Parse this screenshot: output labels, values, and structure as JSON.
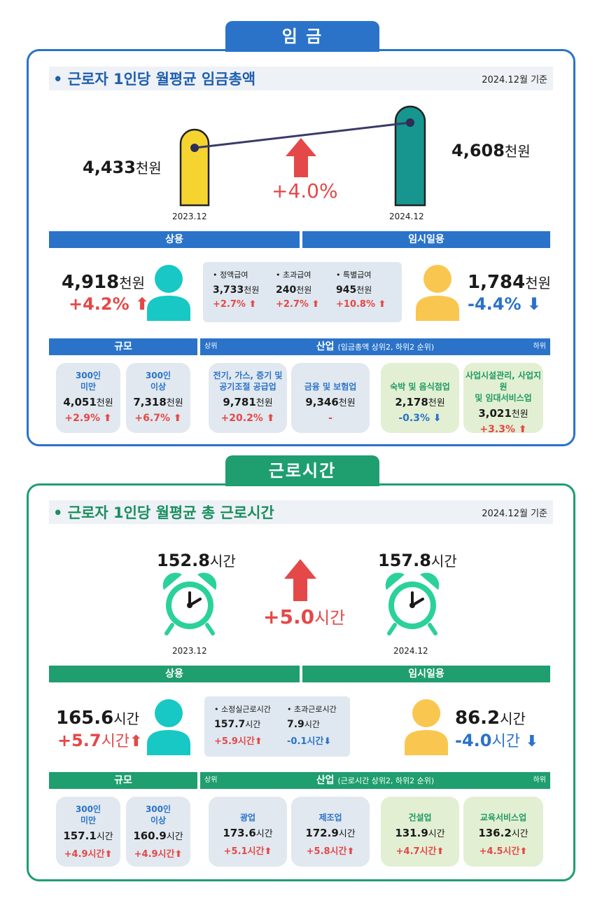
{
  "colors": {
    "wage_accent": "#2a73c9",
    "hours_accent": "#1f9e6f",
    "up": "#e54848",
    "down": "#2a73c9"
  },
  "wage": {
    "tab": "임 금",
    "title": "• 근로자 1인당 월평균 임금총액",
    "date": "2024.12월 기준",
    "left_value": "4,433",
    "left_unit": "천원",
    "left_period": "2023.12",
    "right_value": "4,608",
    "right_unit": "천원",
    "right_period": "2024.12",
    "change": "+4.0%",
    "regular_label": "상용",
    "temp_label": "임시일용",
    "regular_value": "4,918",
    "regular_unit": "천원",
    "regular_change": "+4.2%",
    "temp_value": "1,784",
    "temp_unit": "천원",
    "temp_change": "-4.4%",
    "breakdown": [
      {
        "label": "• 정액급여",
        "value": "3,733",
        "unit": "천원",
        "change": "+2.7%"
      },
      {
        "label": "• 초과급여",
        "value": "240",
        "unit": "천원",
        "change": "+2.7%"
      },
      {
        "label": "• 특별급여",
        "value": "945",
        "unit": "천원",
        "change": "+10.8%"
      }
    ],
    "size_label": "규모",
    "industry_top": "상위",
    "industry_label": "산업",
    "industry_note": "(임금총액 상위2, 하위2 순위)",
    "industry_bottom": "하위",
    "size_cards": [
      {
        "name": "300인\n미만",
        "value": "4,051",
        "unit": "천원",
        "change": "+2.9%"
      },
      {
        "name": "300인\n이상",
        "value": "7,318",
        "unit": "천원",
        "change": "+6.7%"
      }
    ],
    "industry_cards": [
      {
        "name": "전기, 가스, 증기 및\n공기조절 공급업",
        "value": "9,781",
        "unit": "천원",
        "change": "+20.2%"
      },
      {
        "name": "금융 및 보험업",
        "value": "9,346",
        "unit": "천원",
        "change": "-"
      },
      {
        "name": "숙박 및 음식점업",
        "value": "2,178",
        "unit": "천원",
        "change": "-0.3%"
      },
      {
        "name": "사업시설관리, 사업지원\n및 임대서비스업",
        "value": "3,021",
        "unit": "천원",
        "change": "+3.3%"
      }
    ]
  },
  "hours": {
    "tab": "근로시간",
    "title": "• 근로자 1인당 월평균 총 근로시간",
    "date": "2024.12월 기준",
    "left_value": "152.8",
    "left_unit": "시간",
    "left_period": "2023.12",
    "right_value": "157.8",
    "right_unit": "시간",
    "right_period": "2024.12",
    "change_value": "+5.0",
    "change_unit": "시간",
    "regular_label": "상용",
    "temp_label": "임시일용",
    "regular_value": "165.6",
    "regular_unit": "시간",
    "regular_change_value": "+5.7",
    "regular_change_unit": "시간",
    "temp_value": "86.2",
    "temp_unit": "시간",
    "temp_change_value": "-4.0",
    "temp_change_unit": "시간",
    "breakdown": [
      {
        "label": "• 소정실근로시간",
        "value": "157.7",
        "unit": "시간",
        "change": "+5.9시간"
      },
      {
        "label": "• 초과근로시간",
        "value": "7.9",
        "unit": "시간",
        "change": "-0.1시간"
      }
    ],
    "size_label": "규모",
    "industry_top": "상위",
    "industry_label": "산업",
    "industry_note": "(근로시간 상위2, 하위2 순위)",
    "industry_bottom": "하위",
    "size_cards": [
      {
        "name": "300인\n미만",
        "value": "157.1",
        "unit": "시간",
        "change": "+4.9시간"
      },
      {
        "name": "300인\n이상",
        "value": "160.9",
        "unit": "시간",
        "change": "+4.9시간"
      }
    ],
    "industry_cards": [
      {
        "name": "광업",
        "value": "173.6",
        "unit": "시간",
        "change": "+5.1시간"
      },
      {
        "name": "제조업",
        "value": "172.9",
        "unit": "시간",
        "change": "+5.8시간"
      },
      {
        "name": "건설업",
        "value": "131.9",
        "unit": "시간",
        "change": "+4.7시간"
      },
      {
        "name": "교육서비스업",
        "value": "136.2",
        "unit": "시간",
        "change": "+4.5시간"
      }
    ]
  }
}
